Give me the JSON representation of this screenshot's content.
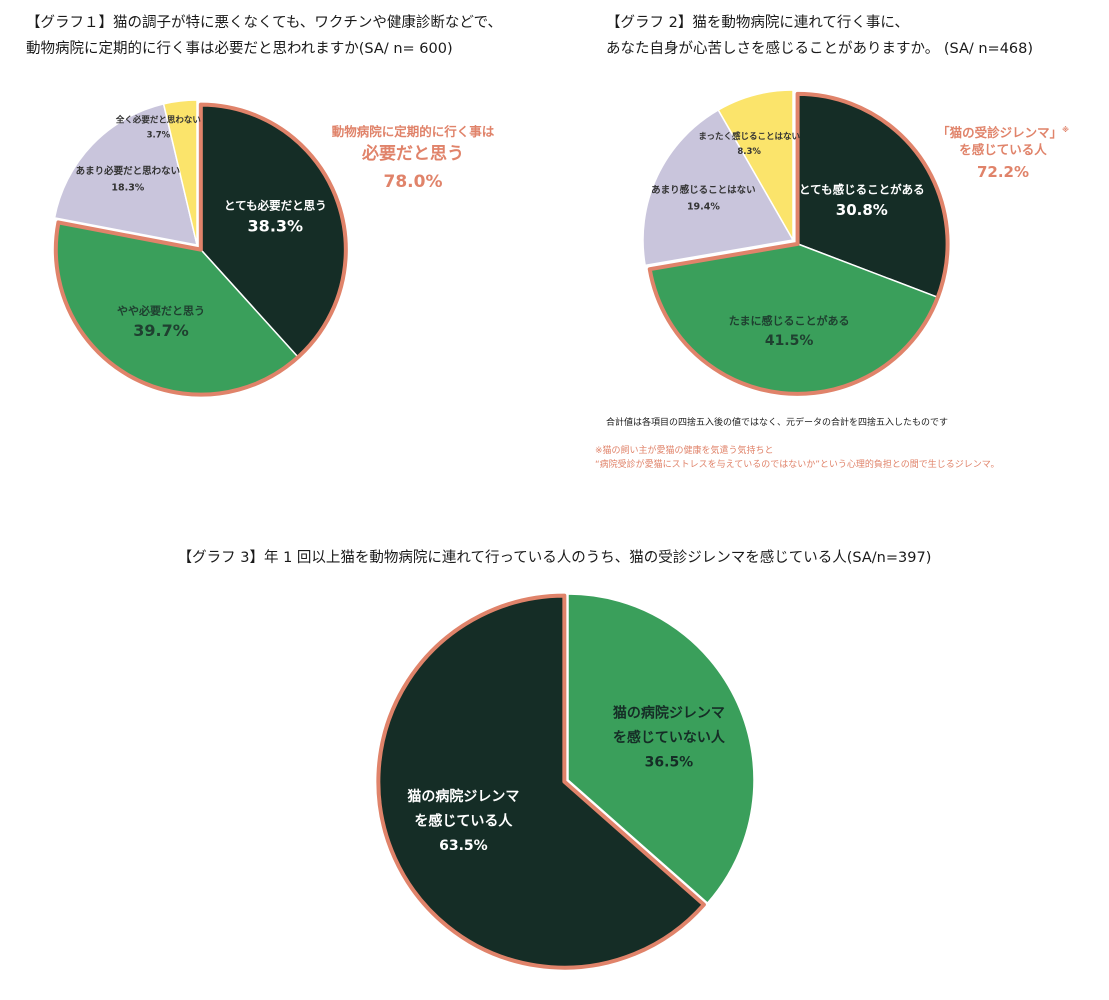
{
  "charts": [
    {
      "id": "g1",
      "title_lines": [
        "【グラフ１】猫の調子が特に悪くなくても、ワクチンや健康診断などで、",
        "動物病院に定期的に行く事は必要だと思われますか(SA/ n= 600)"
      ],
      "callout": {
        "line1": "動物病院に定期的に行く事は",
        "line2": "必要だと思う",
        "pct": "78.0%"
      }
    },
    {
      "id": "g2",
      "title_lines": [
        "【グラフ 2】猫を動物病院に連れて行く事に、",
        "あなた自身が心苦しさを感じることがありますか。 (SA/ n=468)"
      ],
      "callout": {
        "line1": "「猫の受診ジレンマ」",
        "line1_mark": "※",
        "line2": "を感じている人",
        "pct": "72.2%"
      },
      "notes": {
        "sum_note": "合計値は各項目の四捨五入後の値ではなく、元データの合計を四捨五入したものです",
        "footnote_lines": [
          "※猫の飼い主が愛猫の健康を気遣う気持ちと",
          "“病院受診が愛猫にストレスを与えているのではないか”という心理的負担との間で生じるジレンマ。"
        ]
      }
    },
    {
      "id": "g3",
      "title_lines": [
        "【グラフ 3】年 1 回以上猫を動物病院に連れて行っている人のうち、猫の受診ジレンマを感じている人(SA/n=397)"
      ]
    }
  ],
  "colors": {
    "dark": "#152d26",
    "green": "#3a9f5b",
    "lavender": "#c9c5dc",
    "yellow": "#fbe46b",
    "highlight": "#e0836a"
  },
  "chart_data": [
    {
      "type": "pie",
      "title": "【グラフ１】猫の調子が特に悪くなくても、ワクチンや健康診断などで、動物病院に定期的に行く事は必要だと思われますか(SA/ n= 600)",
      "categories": [
        "とても必要だと思う",
        "やや必要だと思う",
        "あまり必要だと思わない",
        "全く必要だと思わない"
      ],
      "values": [
        38.3,
        39.7,
        18.3,
        3.7
      ],
      "labels": [
        "38.3%",
        "39.7%",
        "18.3%",
        "3.7%"
      ],
      "colors": [
        "#152d26",
        "#3a9f5b",
        "#c9c5dc",
        "#fbe46b"
      ],
      "highlight": [
        0,
        1
      ]
    },
    {
      "type": "pie",
      "title": "【グラフ 2】猫を動物病院に連れて行く事に、あなた自身が心苦しさを感じることがありますか。 (SA/ n=468)",
      "categories": [
        "とても感じることがある",
        "たまに感じることがある",
        "あまり感じることはない",
        "まったく感じることはない"
      ],
      "values": [
        30.8,
        41.5,
        19.4,
        8.3
      ],
      "labels": [
        "30.8%",
        "41.5%",
        "19.4%",
        "8.3%"
      ],
      "colors": [
        "#152d26",
        "#3a9f5b",
        "#c9c5dc",
        "#fbe46b"
      ],
      "highlight": [
        0,
        1
      ]
    },
    {
      "type": "pie",
      "title": "【グラフ 3】年 1 回以上猫を動物病院に連れて行っている人のうち、猫の受診ジレンマを感じている人(SA/n=397)",
      "categories": [
        "猫の病院ジレンマを感じていない人",
        "猫の病院ジレンマを感じている人"
      ],
      "category_lines": [
        [
          "猫の病院ジレンマ",
          "を感じていない人"
        ],
        [
          "猫の病院ジレンマ",
          "を感じている人"
        ]
      ],
      "values": [
        36.5,
        63.5
      ],
      "labels": [
        "36.5%",
        "63.5%"
      ],
      "colors": [
        "#3a9f5b",
        "#152d26"
      ],
      "highlight": [
        1
      ]
    }
  ]
}
